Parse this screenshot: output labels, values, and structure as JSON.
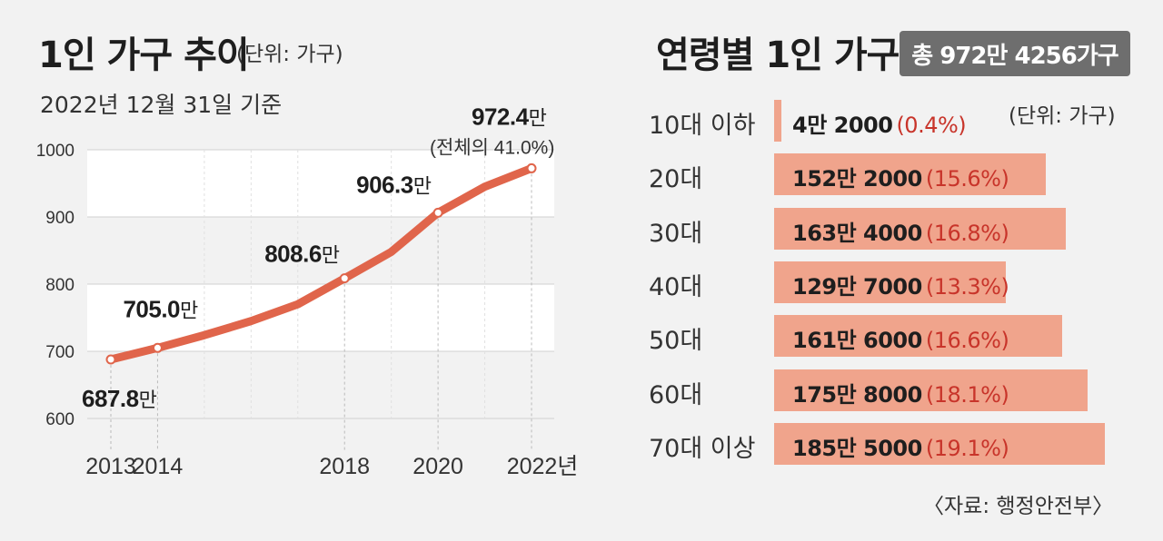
{
  "left_chart": {
    "title": "1인 가구 추이",
    "unit": "(단위: 가구)",
    "subtitle": "2022년 12월 31일 기준",
    "callout_note": "(전체의 41.0%)"
  },
  "right_chart": {
    "title": "연령별 1인 가구",
    "total_badge": "총 972만 4256가구",
    "unit": "(단위: 가구)",
    "source": "〈자료: 행정안전부〉"
  },
  "chart_data": [
    {
      "type": "line",
      "title": "1인 가구 추이",
      "subtitle": "2022년 12월 31일 기준",
      "unit": "(단위: 가구)",
      "x": [
        2013,
        2014,
        2015,
        2016,
        2017,
        2018,
        2019,
        2020,
        2021,
        2022
      ],
      "y": [
        687.8,
        705.0,
        724.0,
        745.0,
        770.0,
        808.6,
        848.0,
        906.3,
        945.0,
        972.4
      ],
      "ylim": [
        600,
        1000
      ],
      "yticks": [
        "600",
        "700",
        "800",
        "900",
        "1000"
      ],
      "xticks": [
        "2013",
        "2014",
        "2018",
        "2020",
        "2022년"
      ],
      "xticks_values": [
        2013,
        2014,
        2018,
        2020,
        2022
      ],
      "grid": "alternating horizontal bands",
      "color": "#e0654b",
      "labels": [
        {
          "x": 2013,
          "value": "687.8",
          "suffix": "만"
        },
        {
          "x": 2014,
          "value": "705.0",
          "suffix": "만"
        },
        {
          "x": 2018,
          "value": "808.6",
          "suffix": "만"
        },
        {
          "x": 2020,
          "value": "906.3",
          "suffix": "만"
        },
        {
          "x": 2022,
          "value": "972.4",
          "suffix": "만"
        }
      ],
      "marked_points": [
        2013,
        2014,
        2018,
        2020,
        2022
      ]
    },
    {
      "type": "bar",
      "orientation": "horizontal",
      "title": "연령별 1인 가구",
      "total": "총 972만 4256가구",
      "unit": "(단위: 가구)",
      "categories": [
        "10대 이하",
        "20대",
        "30대",
        "40대",
        "50대",
        "60대",
        "70대 이상"
      ],
      "values": [
        42000,
        1522000,
        1634000,
        1297000,
        1616000,
        1758000,
        1855000
      ],
      "value_labels": [
        "4만 2000",
        "152만 2000",
        "163만 4000",
        "129만 7000",
        "161만 6000",
        "175만 8000",
        "185만 5000"
      ],
      "pct_labels": [
        "(0.4%)",
        "(15.6%)",
        "(16.8%)",
        "(13.3%)",
        "(16.6%)",
        "(18.1%)",
        "(19.1%)"
      ],
      "color": "#f0a48c",
      "pct_color": "#c8342a",
      "source": "〈자료: 행정안전부〉"
    }
  ]
}
